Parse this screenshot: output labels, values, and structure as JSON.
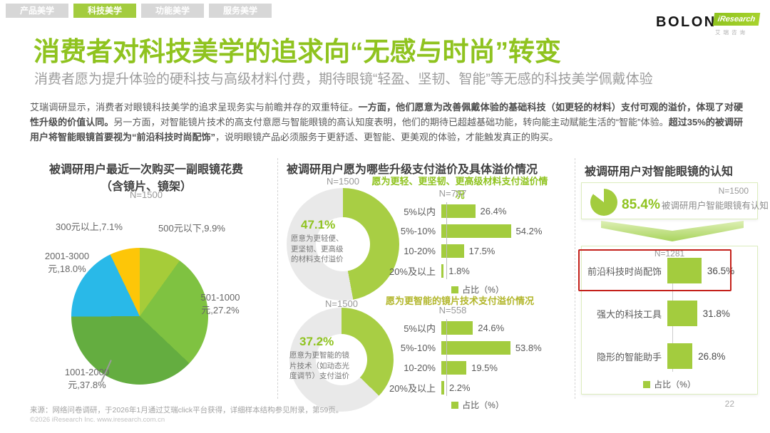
{
  "tabs": [
    {
      "label": "产品美学",
      "active": false
    },
    {
      "label": "科技美学",
      "active": true
    },
    {
      "label": "功能美学",
      "active": false
    },
    {
      "label": "服务美学",
      "active": false
    }
  ],
  "brand": {
    "bolon": "BOLON",
    "iresearch": "iResearch",
    "iresearch_cn": "艾瑞咨询"
  },
  "header": {
    "title": "消费者对科技美学的追求向“无感与时尚”转变",
    "subtitle": "消费者愿为提升体验的硬科技与高级材料付费，期待眼镜“轻盈、坚韧、智能”等无感的科技美学佩戴体验"
  },
  "intro": {
    "segments": [
      {
        "text": "艾瑞调研显示，消费者对眼镜科技美学的追求呈现务实与前瞻并存的双重特征。",
        "bold": false
      },
      {
        "text": "一方面，他们愿意为改善佩戴体验的基础科技（如更轻的材料）支付可观的溢价，体现了对硬性升级的价值认同。",
        "bold": true
      },
      {
        "text": "另一方面，对智能镜片技术的高支付意愿与智能眼镜的高认知度表明，他们的期待已超越基础功能，转向能主动赋能生活的“智能”体验。",
        "bold": false
      },
      {
        "text": "超过35%的被调研用户将智能眼镜首要视为“前沿科技时尚配饰”",
        "bold": true
      },
      {
        "text": "，说明眼镜产品必须服务于更舒适、更智能、更美观的体验，才能触发真正的购买。",
        "bold": false
      }
    ]
  },
  "sections": {
    "left": {
      "title_line1": "被调研用户最近一次购买一副眼镜花费",
      "title_line2": "（含镜片、镜架）",
      "labels": [
        "300元以上,7.1%",
        "500元以下,9.9%",
        "2001-3000\n元,18.0%",
        "501-1000\n元,27.2%",
        "1001-2000\n元,37.8%"
      ]
    },
    "middle": {
      "title": "被调研用户愿为哪些升级支付溢价及具体溢价情况",
      "donut1_desc": "愿意为更轻便、\n更坚韧、更高级\n的材料支付溢价",
      "donut2_desc": "愿意为更智能的镜\n片技术（如动态光\n度调节）支付溢价"
    },
    "right": {
      "title": "被调研用户对智能眼镜的认知",
      "awareness_text": "被调研用户智能眼镜有认知"
    }
  },
  "chart_data": [
    {
      "id": "glasses-spend-pie",
      "type": "pie",
      "sample": "N=1500",
      "title": "被调研用户最近一次购买一副眼镜花费（含镜片、镜架）",
      "categories": [
        "500元以下",
        "501-1000元",
        "1001-2000元",
        "2001-3000元",
        "300元以上"
      ],
      "values": [
        9.9,
        27.2,
        37.8,
        18.0,
        7.1
      ],
      "colors": [
        "#a6cc39",
        "#7fc241",
        "#64ad40",
        "#29b9e8",
        "#fdc608"
      ],
      "unit": "%"
    },
    {
      "id": "premium-material-donut",
      "type": "pie",
      "style": "donut",
      "sample": "N=1500",
      "label": "愿意为更轻便、更坚韧、更高级的材料支付溢价",
      "value": 47.1,
      "color": "#a8ce44",
      "track": "#e9e9e9"
    },
    {
      "id": "premium-material-bars",
      "type": "bar",
      "sample": "N=707",
      "title": "愿为更轻、更坚韧、更高级材料支付溢价情况",
      "categories": [
        "5%以内",
        "5%-10%",
        "10-20%",
        "20%及以上"
      ],
      "values": [
        26.4,
        54.2,
        17.5,
        1.8
      ],
      "legend": "占比（%）",
      "color": "#a3cc3e",
      "xlim": [
        0,
        60
      ]
    },
    {
      "id": "smart-lens-donut",
      "type": "pie",
      "style": "donut",
      "sample": "N=1500",
      "label": "愿意为更智能的镜片技术（如动态光度调节）支付溢价",
      "value": 37.2,
      "color": "#a8ce44",
      "track": "#e9e9e9"
    },
    {
      "id": "smart-lens-bars",
      "type": "bar",
      "sample": "N=558",
      "title": "愿为更智能的镜片技术支付溢价情况",
      "categories": [
        "5%以内",
        "5%-10%",
        "10-20%",
        "20%及以上"
      ],
      "values": [
        24.6,
        53.8,
        19.5,
        2.2
      ],
      "legend": "占比（%）",
      "color": "#a3cc3e",
      "xlim": [
        0,
        60
      ]
    },
    {
      "id": "smart-glasses-awareness-pie",
      "type": "pie",
      "sample": "N=1500",
      "label": "被调研用户智能眼镜有认知",
      "value": 85.4,
      "color": "#a3cc3e",
      "track": "#ffffff"
    },
    {
      "id": "smart-glasses-perception-bars",
      "type": "bar",
      "sample": "N=1281",
      "categories": [
        "前沿科技时尚配饰",
        "强大的科技工具",
        "隐形的智能助手"
      ],
      "values": [
        36.5,
        31.8,
        26.8
      ],
      "highlight": "前沿科技时尚配饰",
      "legend": "占比（%）",
      "color": "#a3cc3e",
      "xlim": [
        0,
        40
      ]
    }
  ],
  "colors": {
    "accent_green": "#8fc31f",
    "bar_green": "#a3cc3e",
    "cyan": "#29b9e8",
    "yellow": "#fdc608",
    "highlight_red": "#c4201a"
  },
  "footer": {
    "source": "来源：网络问卷调研，于2026年1月通过艾瑞click平台获得，详细样本结构参见附录，第59页。",
    "copyright": "©2026 iResearch Inc. www.iresearch.com.cn",
    "page": "22"
  }
}
